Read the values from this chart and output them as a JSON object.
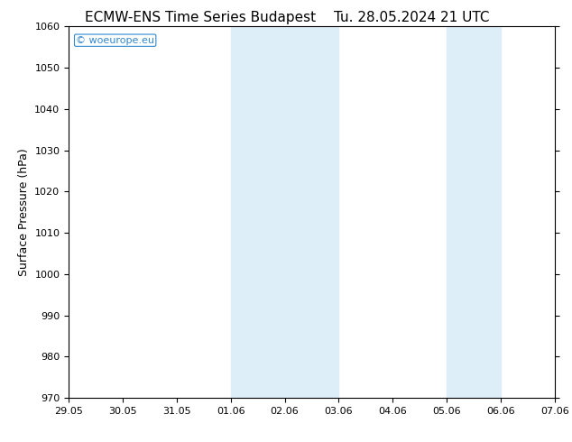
{
  "title_left": "ECMW-ENS Time Series Budapest",
  "title_right": "Tu. 28.05.2024 21 UTC",
  "ylabel": "Surface Pressure (hPa)",
  "ylim": [
    970,
    1060
  ],
  "yticks": [
    970,
    980,
    990,
    1000,
    1010,
    1020,
    1030,
    1040,
    1050,
    1060
  ],
  "xtick_labels": [
    "29.05",
    "30.05",
    "31.05",
    "01.06",
    "02.06",
    "03.06",
    "04.06",
    "05.06",
    "06.06",
    "07.06"
  ],
  "xtick_positions": [
    0,
    1,
    2,
    3,
    4,
    5,
    6,
    7,
    8,
    9
  ],
  "xlim": [
    0,
    9
  ],
  "shaded_regions": [
    {
      "xmin": 3,
      "xmax": 5
    },
    {
      "xmin": 7,
      "xmax": 8
    }
  ],
  "shade_color": "#ddeef8",
  "background_color": "#ffffff",
  "plot_bg_color": "#ffffff",
  "watermark_text": "© woeurope.eu",
  "watermark_color": "#3388cc",
  "title_fontsize": 11,
  "tick_fontsize": 8,
  "ylabel_fontsize": 9
}
